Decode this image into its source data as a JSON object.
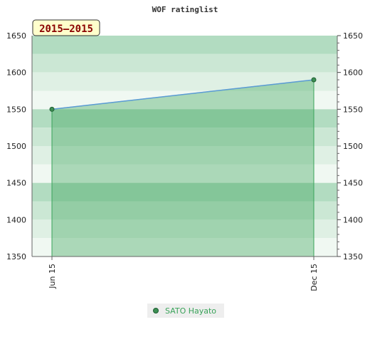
{
  "chart_data": {
    "type": "area",
    "title": "WOF ratinglist",
    "period_label": "2015–2015",
    "x": [
      "Jun 15",
      "Dec 15"
    ],
    "series": [
      {
        "name": "SATO Hayato",
        "values": [
          1550,
          1590
        ]
      }
    ],
    "ylim": [
      1350,
      1650
    ],
    "y_ticks": [
      1350,
      1400,
      1450,
      1500,
      1550,
      1600,
      1650
    ],
    "grid": true,
    "legend": "bottom-center",
    "colors": {
      "band_palette": [
        "#b2dcc1",
        "#cbe7d4",
        "#dff0e4",
        "#f0f8f2"
      ],
      "fill": "#3aa35a",
      "line": "#5b9bd5",
      "marker": "#3d8f53",
      "badge_bg": "#ffffcc",
      "badge_text": "#8b0000",
      "legend_text": "#3aa35a"
    }
  }
}
